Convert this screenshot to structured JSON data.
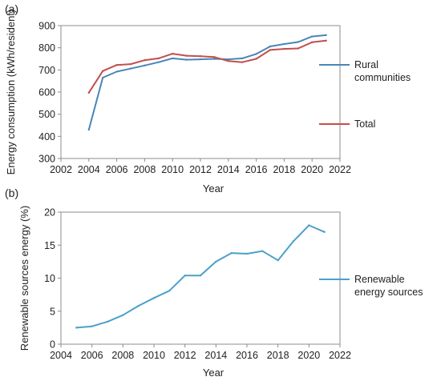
{
  "chart_data": [
    {
      "panel": "(a)",
      "type": "line",
      "xlabel": "Year",
      "ylabel": "Energy consumption (kWh/resident)",
      "xlim": [
        2002,
        2022
      ],
      "ylim": [
        300,
        900
      ],
      "xticks": [
        2002,
        2004,
        2006,
        2008,
        2010,
        2012,
        2014,
        2016,
        2018,
        2020,
        2022
      ],
      "yticks": [
        300,
        400,
        500,
        600,
        700,
        800,
        900
      ],
      "grid": false,
      "legend": "right",
      "series": [
        {
          "name": "Rural communities",
          "legend_lines": [
            "Rural",
            "communities"
          ],
          "color": "#4a86b5",
          "x": [
            2004,
            2005,
            2006,
            2007,
            2008,
            2009,
            2010,
            2011,
            2012,
            2013,
            2014,
            2015,
            2016,
            2017,
            2018,
            2019,
            2020,
            2021
          ],
          "y": [
            430,
            665,
            692,
            706,
            720,
            735,
            752,
            746,
            748,
            750,
            748,
            752,
            772,
            806,
            817,
            826,
            851,
            857
          ]
        },
        {
          "name": "Total",
          "legend_lines": [
            "Total"
          ],
          "color": "#c0504d",
          "x": [
            2004,
            2005,
            2006,
            2007,
            2008,
            2009,
            2010,
            2011,
            2012,
            2013,
            2014,
            2015,
            2016,
            2017,
            2018,
            2019,
            2020,
            2021
          ],
          "y": [
            597,
            695,
            722,
            726,
            744,
            752,
            773,
            764,
            762,
            758,
            740,
            735,
            750,
            790,
            795,
            797,
            825,
            832
          ]
        }
      ]
    },
    {
      "panel": "(b)",
      "type": "line",
      "xlabel": "Year",
      "ylabel": "Renewable sources energy (%)",
      "xlim": [
        2004,
        2022
      ],
      "ylim": [
        0,
        20
      ],
      "xticks": [
        2004,
        2006,
        2008,
        2010,
        2012,
        2014,
        2016,
        2018,
        2020,
        2022
      ],
      "yticks": [
        0,
        5,
        10,
        15,
        20
      ],
      "grid": false,
      "legend": "right",
      "series": [
        {
          "name": "Renewable energy sources",
          "legend_lines": [
            "Renewable",
            "energy sources"
          ],
          "color": "#4ba0cc",
          "x": [
            2005,
            2006,
            2007,
            2008,
            2009,
            2010,
            2011,
            2012,
            2013,
            2014,
            2015,
            2016,
            2017,
            2018,
            2019,
            2020,
            2021
          ],
          "y": [
            2.5,
            2.7,
            3.4,
            4.4,
            5.8,
            7.0,
            8.1,
            10.4,
            10.4,
            12.5,
            13.8,
            13.7,
            14.1,
            12.7,
            15.6,
            18.0,
            17.0
          ]
        }
      ]
    }
  ]
}
